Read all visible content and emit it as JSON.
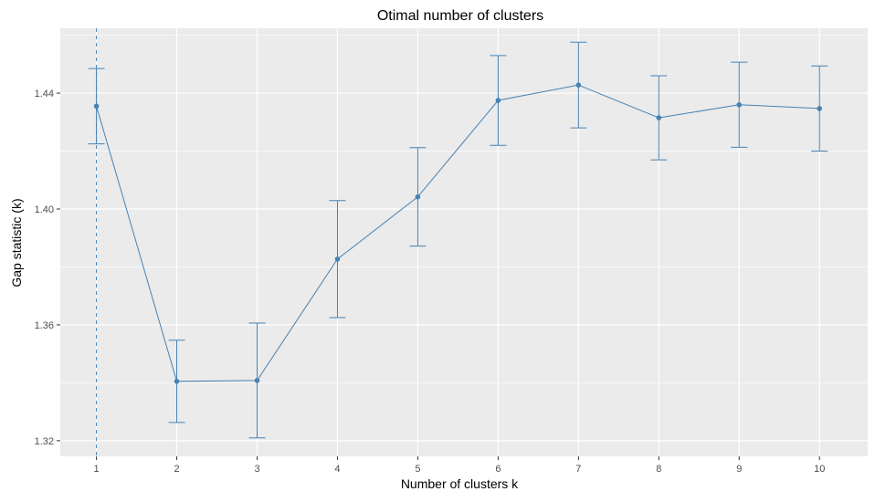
{
  "chart_data": {
    "type": "line",
    "title": "Otimal number of clusters",
    "xlabel": "Number of clusters k",
    "ylabel": "Gap statistic (k)",
    "x": [
      1,
      2,
      3,
      4,
      5,
      6,
      7,
      8,
      9,
      10
    ],
    "x_tick_labels": [
      "1",
      "2",
      "3",
      "4",
      "5",
      "6",
      "7",
      "8",
      "9",
      "10"
    ],
    "series": [
      {
        "values": [
          1.4355,
          1.3405,
          1.3408,
          1.3827,
          1.4042,
          1.4375,
          1.4428,
          1.4315,
          1.436,
          1.4347
        ],
        "error_lower": [
          1.4225,
          1.3263,
          1.321,
          1.3625,
          1.3872,
          1.422,
          1.428,
          1.417,
          1.4213,
          1.42
        ],
        "error_upper": [
          1.4485,
          1.3547,
          1.3606,
          1.4029,
          1.4212,
          1.453,
          1.4576,
          1.446,
          1.4507,
          1.4494
        ]
      }
    ],
    "ylim": [
      1.3146,
      1.4624
    ],
    "y_ticks": [
      1.32,
      1.36,
      1.4,
      1.44
    ],
    "y_tick_labels": [
      "1.32",
      "1.36",
      "1.40",
      "1.44"
    ],
    "xlim": [
      0.55,
      10.6
    ],
    "optimal_k": 1,
    "grid": true,
    "legend": "none",
    "colors": {
      "series": "#4682B4",
      "panel_background": "#EBEBEB",
      "grid_line": "#FFFFFF",
      "reference_line": "#4682B4"
    }
  }
}
